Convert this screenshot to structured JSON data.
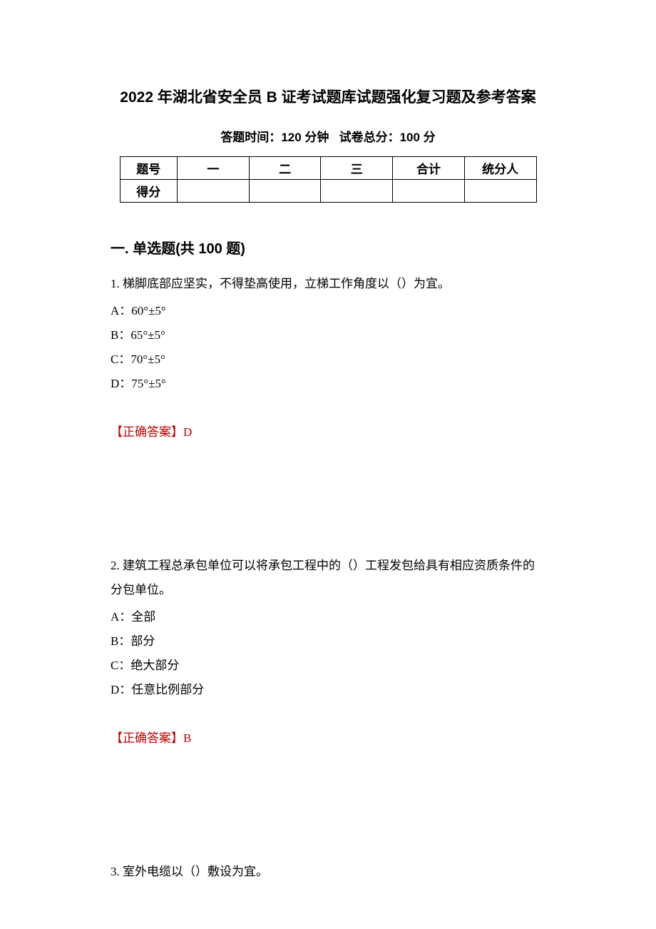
{
  "title": "2022 年湖北省安全员 B 证考试题库试题强化复习题及参考答案",
  "subtitle_time_label": "答题时间：",
  "subtitle_time_value": "120 分钟",
  "subtitle_score_label": "试卷总分：",
  "subtitle_score_value": "100 分",
  "table": {
    "row1": {
      "c0": "题号",
      "c1": "一",
      "c2": "二",
      "c3": "三",
      "c4": "合计",
      "c5": "统分人"
    },
    "row2": {
      "c0": "得分",
      "c1": "",
      "c2": "",
      "c3": "",
      "c4": "",
      "c5": ""
    }
  },
  "section_header": "一. 单选题(共 100 题)",
  "questions": {
    "q1": {
      "text": "1. 梯脚底部应坚实，不得垫高使用，立梯工作角度以（）为宜。",
      "optA": "A：60°±5°",
      "optB": "B：65°±5°",
      "optC": "C：70°±5°",
      "optD": "D：75°±5°",
      "answer_label": "【正确答案】",
      "answer_value": "D"
    },
    "q2": {
      "text": "2. 建筑工程总承包单位可以将承包工程中的（）工程发包给具有相应资质条件的分包单位。",
      "optA": "A：全部",
      "optB": "B：部分",
      "optC": "C：绝大部分",
      "optD": "D：任意比例部分",
      "answer_label": "【正确答案】",
      "answer_value": "B"
    },
    "q3": {
      "text": "3. 室外电缆以（）敷设为宜。"
    }
  },
  "colors": {
    "text": "#000000",
    "answer": "#c00000",
    "background": "#ffffff",
    "border": "#000000"
  }
}
